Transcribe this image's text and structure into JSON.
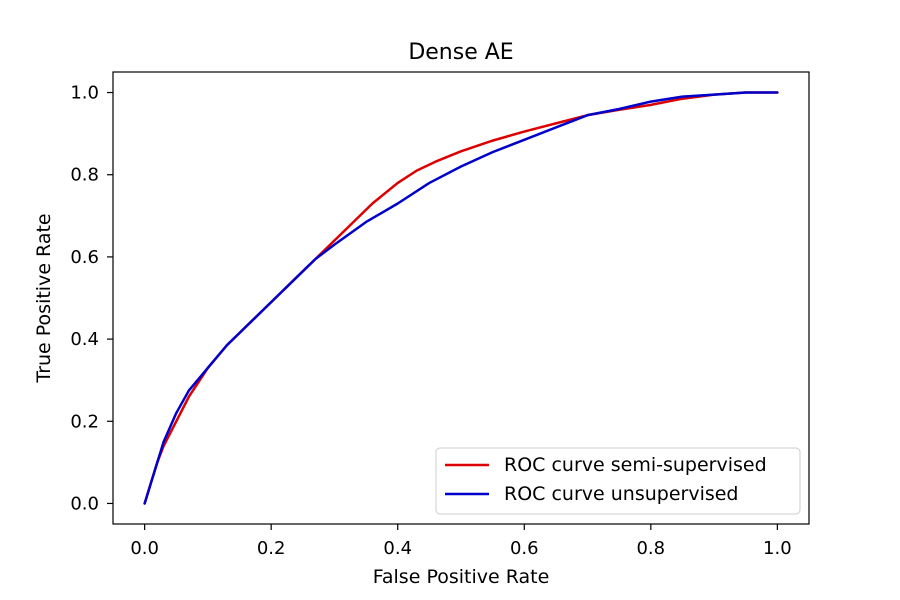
{
  "chart_data": {
    "type": "line",
    "title": "Dense AE",
    "xlabel": "False Positive Rate",
    "ylabel": "True Positive Rate",
    "xlim": [
      -0.05,
      1.05
    ],
    "ylim": [
      -0.05,
      1.05
    ],
    "xticks": [
      0.0,
      0.2,
      0.4,
      0.6,
      0.8,
      1.0
    ],
    "yticks": [
      0.0,
      0.2,
      0.4,
      0.6,
      0.8,
      1.0
    ],
    "xtick_labels": [
      "0.0",
      "0.2",
      "0.4",
      "0.6",
      "0.8",
      "1.0"
    ],
    "ytick_labels": [
      "0.0",
      "0.2",
      "0.4",
      "0.6",
      "0.8",
      "1.0"
    ],
    "grid": false,
    "legend_position": "lower-right",
    "series": [
      {
        "name": "ROC curve semi-supervised",
        "color": "#dd0000",
        "x": [
          0.0,
          0.01,
          0.02,
          0.03,
          0.05,
          0.07,
          0.1,
          0.13,
          0.16,
          0.2,
          0.24,
          0.27,
          0.3,
          0.33,
          0.36,
          0.4,
          0.43,
          0.46,
          0.5,
          0.55,
          0.6,
          0.65,
          0.7,
          0.75,
          0.8,
          0.85,
          0.9,
          0.95,
          1.0
        ],
        "y": [
          0.0,
          0.05,
          0.1,
          0.14,
          0.2,
          0.26,
          0.33,
          0.385,
          0.43,
          0.49,
          0.55,
          0.595,
          0.64,
          0.685,
          0.73,
          0.78,
          0.81,
          0.832,
          0.857,
          0.883,
          0.905,
          0.925,
          0.945,
          0.958,
          0.97,
          0.985,
          0.995,
          1.0,
          1.0
        ]
      },
      {
        "name": "ROC curve unsupervised",
        "color": "#0000cc",
        "x": [
          0.0,
          0.01,
          0.02,
          0.03,
          0.05,
          0.07,
          0.1,
          0.13,
          0.16,
          0.2,
          0.24,
          0.27,
          0.3,
          0.35,
          0.4,
          0.45,
          0.5,
          0.55,
          0.6,
          0.65,
          0.7,
          0.75,
          0.8,
          0.85,
          0.9,
          0.95,
          1.0
        ],
        "y": [
          0.0,
          0.05,
          0.1,
          0.15,
          0.22,
          0.275,
          0.33,
          0.385,
          0.43,
          0.49,
          0.55,
          0.595,
          0.63,
          0.685,
          0.73,
          0.78,
          0.82,
          0.855,
          0.885,
          0.915,
          0.945,
          0.96,
          0.978,
          0.99,
          0.995,
          1.0,
          1.0
        ]
      }
    ]
  }
}
